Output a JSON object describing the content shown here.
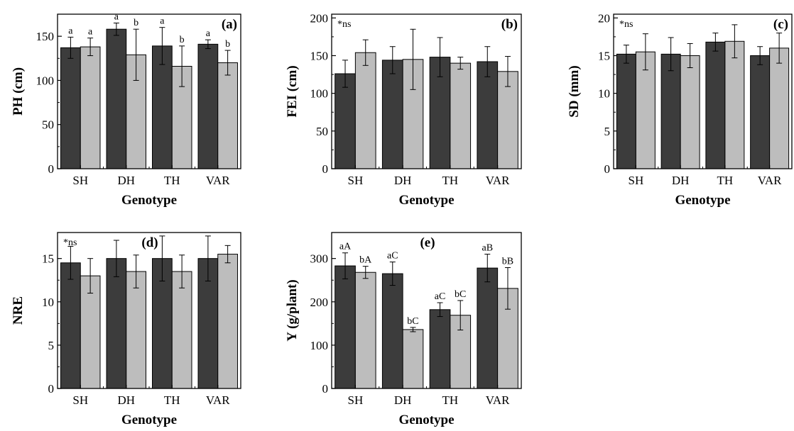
{
  "figure": {
    "colors": {
      "series1": "#3c3c3c",
      "series2": "#bdbdbd",
      "axis": "#000000"
    }
  },
  "chart_data": [
    {
      "panel_label": "(a)",
      "type": "bar",
      "categories": [
        "SH",
        "DH",
        "TH",
        "VAR"
      ],
      "xlabel": "Genotype",
      "ylabel": "PH (cm)",
      "ylim": [
        0,
        175
      ],
      "yticks": [
        0,
        50,
        100,
        150
      ],
      "annotation": "",
      "series": [
        {
          "values": [
            137,
            158,
            139,
            141
          ],
          "errors": [
            12,
            7,
            21,
            5
          ],
          "labels": [
            "a",
            "a",
            "a",
            "a"
          ]
        },
        {
          "values": [
            138,
            129,
            116,
            120
          ],
          "errors": [
            10,
            29,
            23,
            14
          ],
          "labels": [
            "a",
            "b",
            "b",
            "b"
          ]
        }
      ]
    },
    {
      "panel_label": "(b)",
      "type": "bar",
      "categories": [
        "SH",
        "DH",
        "TH",
        "VAR"
      ],
      "xlabel": "Genotype",
      "ylabel": "FEI (cm)",
      "ylim": [
        0,
        205
      ],
      "yticks": [
        0,
        50,
        100,
        150,
        200
      ],
      "annotation": "*ns",
      "series": [
        {
          "values": [
            126,
            144,
            148,
            142
          ],
          "errors": [
            18,
            18,
            26,
            20
          ],
          "labels": [
            "",
            "",
            "",
            ""
          ]
        },
        {
          "values": [
            154,
            145,
            140,
            129
          ],
          "errors": [
            17,
            40,
            8,
            20
          ],
          "labels": [
            "",
            "",
            "",
            ""
          ]
        }
      ]
    },
    {
      "panel_label": "(c)",
      "type": "bar",
      "categories": [
        "SH",
        "DH",
        "TH",
        "VAR"
      ],
      "xlabel": "Genotype",
      "ylabel": "SD (mm)",
      "ylim": [
        0,
        20.5
      ],
      "yticks": [
        0,
        5,
        10,
        15,
        20
      ],
      "annotation": "*ns",
      "series": [
        {
          "values": [
            15.2,
            15.2,
            16.8,
            15.0
          ],
          "errors": [
            1.2,
            2.2,
            1.2,
            1.2
          ],
          "labels": [
            "",
            "",
            "",
            ""
          ]
        },
        {
          "values": [
            15.5,
            15.0,
            16.9,
            16.0
          ],
          "errors": [
            2.4,
            1.6,
            2.2,
            2.0
          ],
          "labels": [
            "",
            "",
            "",
            ""
          ]
        }
      ]
    },
    {
      "panel_label": "(d)",
      "type": "bar",
      "categories": [
        "SH",
        "DH",
        "TH",
        "VAR"
      ],
      "xlabel": "Genotype",
      "ylabel": "NRE",
      "ylim": [
        0,
        18
      ],
      "yticks": [
        0,
        5,
        10,
        15
      ],
      "annotation": "*ns",
      "series": [
        {
          "values": [
            14.5,
            15.0,
            15.0,
            15.0
          ],
          "errors": [
            1.9,
            2.1,
            2.6,
            2.6
          ],
          "labels": [
            "",
            "",
            "",
            ""
          ]
        },
        {
          "values": [
            13.0,
            13.5,
            13.5,
            15.5
          ],
          "errors": [
            2.0,
            1.9,
            1.9,
            1.0
          ],
          "labels": [
            "",
            "",
            "",
            ""
          ]
        }
      ]
    },
    {
      "panel_label": "(e)",
      "type": "bar",
      "categories": [
        "SH",
        "DH",
        "TH",
        "VAR"
      ],
      "xlabel": "Genotype",
      "ylabel": "Y (g/plant)",
      "ylim": [
        0,
        360
      ],
      "yticks": [
        0,
        100,
        200,
        300
      ],
      "annotation": "",
      "series": [
        {
          "values": [
            283,
            265,
            182,
            278
          ],
          "errors": [
            30,
            27,
            16,
            32
          ],
          "labels": [
            "aA",
            "aC",
            "aC",
            "aB"
          ]
        },
        {
          "values": [
            268,
            136,
            169,
            231
          ],
          "errors": [
            14,
            5,
            34,
            48
          ],
          "labels": [
            "bA",
            "bC",
            "bC",
            "bB"
          ]
        }
      ]
    }
  ]
}
